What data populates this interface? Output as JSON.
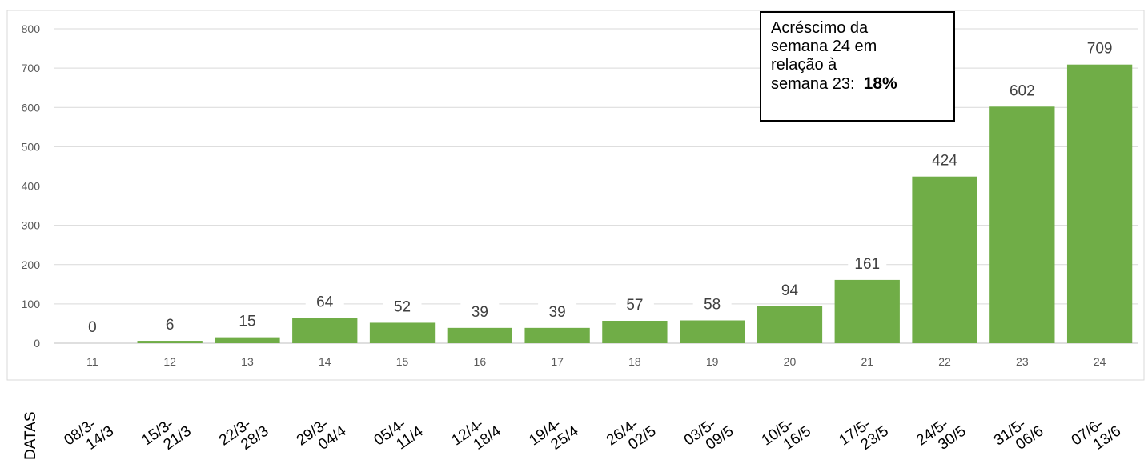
{
  "chart_data": {
    "type": "bar",
    "title": "",
    "xlabel": "",
    "ylabel": "",
    "ylim": [
      0,
      800
    ],
    "yticks": [
      0,
      100,
      200,
      300,
      400,
      500,
      600,
      700,
      800
    ],
    "grid": true,
    "categories": [
      "11",
      "12",
      "13",
      "14",
      "15",
      "16",
      "17",
      "18",
      "19",
      "20",
      "21",
      "22",
      "23",
      "24"
    ],
    "values": [
      0,
      6,
      15,
      64,
      52,
      39,
      39,
      57,
      58,
      94,
      161,
      424,
      602,
      709
    ],
    "bar_color": "#70ad47",
    "dates_label": "DATAS",
    "dates": [
      [
        "08/3-",
        "14/3"
      ],
      [
        "15/3-",
        "21/3"
      ],
      [
        "22/3-",
        "28/3"
      ],
      [
        "29/3-",
        "04/4"
      ],
      [
        "05/4-",
        "11/4"
      ],
      [
        "12/4-",
        "18/4"
      ],
      [
        "19/4-",
        "25/4"
      ],
      [
        "26/4-",
        "02/5"
      ],
      [
        "03/5-",
        "09/5"
      ],
      [
        "10/5-",
        "16/5"
      ],
      [
        "17/5-",
        "23/5"
      ],
      [
        "24/5-",
        "30/5"
      ],
      [
        "31/5-",
        "06/6"
      ],
      [
        "07/6-",
        "13/6"
      ]
    ],
    "annotation": {
      "lines": [
        "Acréscimo da",
        "semana 24 em",
        "relação à"
      ],
      "last_prefix": "semana 23:",
      "percent": "18%"
    }
  }
}
